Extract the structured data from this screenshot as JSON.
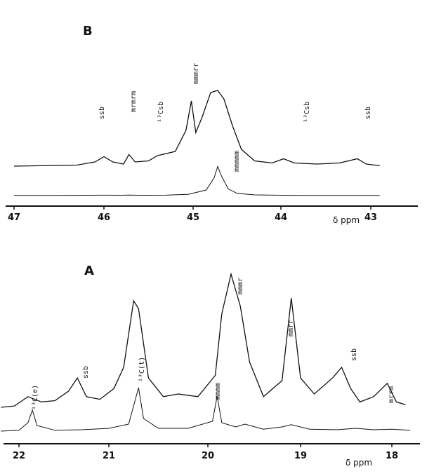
{
  "chart_data": [
    {
      "type": "line",
      "panel": "B",
      "xlabel": "δ ppm",
      "xlim": [
        47.0,
        42.8
      ],
      "xticks": [
        47,
        46,
        45,
        44,
        43
      ],
      "tick_labels": [
        "47",
        "46",
        "45",
        "44",
        "43"
      ],
      "grid": false,
      "series": [
        {
          "x": [
            47.0,
            46.6,
            46.2,
            46.0,
            45.8,
            45.72,
            45.6,
            45.5,
            45.3,
            45.05,
            44.85,
            44.76,
            44.72,
            44.68,
            44.6,
            44.5,
            44.3,
            44.0,
            43.7,
            43.4,
            43.0,
            42.9
          ],
          "values": [
            0.02,
            0.02,
            0.03,
            0.04,
            0.03,
            0.05,
            0.03,
            0.03,
            0.04,
            0.12,
            0.5,
            1.6,
            2.6,
            1.8,
            0.6,
            0.2,
            0.06,
            0.03,
            0.02,
            0.02,
            0.02,
            0.02
          ]
        },
        {
          "x": [
            47.0,
            46.7,
            46.3,
            46.1,
            46.0,
            45.9,
            45.78,
            45.72,
            45.65,
            45.5,
            45.4,
            45.2,
            45.08,
            45.02,
            44.97,
            44.9,
            44.8,
            44.72,
            44.65,
            44.55,
            44.45,
            44.3,
            44.1,
            43.97,
            43.85,
            43.6,
            43.35,
            43.15,
            43.05,
            42.9
          ],
          "values": [
            0.1,
            0.12,
            0.15,
            0.3,
            0.55,
            0.3,
            0.2,
            0.65,
            0.3,
            0.35,
            0.6,
            0.8,
            1.8,
            3.2,
            1.7,
            2.4,
            3.6,
            3.7,
            3.3,
            2.0,
            0.9,
            0.35,
            0.25,
            0.45,
            0.25,
            0.2,
            0.25,
            0.45,
            0.2,
            0.12
          ]
        }
      ],
      "annotations": [
        "ssb",
        "mrmrm",
        "¹³Csb",
        "mmmrr",
        "mmmmm",
        "¹³Csb",
        "ssb"
      ],
      "panel_label": "B"
    },
    {
      "type": "line",
      "panel": "A",
      "xlabel": "δ ppm",
      "xlim": [
        22.2,
        17.8
      ],
      "xticks": [
        22,
        21,
        20,
        19,
        18
      ],
      "tick_labels": [
        "22",
        "21",
        "20",
        "19",
        "18"
      ],
      "grid": false,
      "series": [
        {
          "x": [
            22.2,
            22.0,
            21.9,
            21.85,
            21.8,
            21.6,
            21.3,
            21.0,
            20.8,
            20.7,
            20.65,
            20.5,
            20.2,
            19.95,
            19.9,
            19.85,
            19.7,
            19.6,
            19.4,
            19.2,
            19.1,
            18.9,
            18.6,
            18.4,
            18.2,
            18.0,
            17.8
          ],
          "values": [
            0.05,
            0.08,
            0.35,
            0.8,
            0.25,
            0.08,
            0.1,
            0.15,
            0.3,
            1.6,
            0.5,
            0.15,
            0.15,
            0.4,
            1.3,
            0.35,
            0.2,
            0.3,
            0.12,
            0.2,
            0.28,
            0.12,
            0.1,
            0.15,
            0.1,
            0.12,
            0.08
          ]
        },
        {
          "x": [
            22.2,
            22.05,
            21.9,
            21.75,
            21.6,
            21.45,
            21.35,
            21.25,
            21.1,
            20.95,
            20.85,
            20.75,
            20.7,
            20.6,
            20.45,
            20.3,
            20.1,
            19.92,
            19.85,
            19.75,
            19.65,
            19.55,
            19.4,
            19.2,
            19.1,
            19.0,
            18.85,
            18.65,
            18.55,
            18.45,
            18.35,
            18.2,
            18.05,
            17.95,
            17.85
          ],
          "values": [
            0.5,
            0.55,
            0.9,
            0.7,
            0.75,
            1.1,
            1.6,
            0.9,
            0.8,
            1.2,
            2.0,
            4.5,
            4.2,
            1.6,
            0.9,
            1.0,
            0.9,
            1.7,
            4.0,
            5.5,
            4.3,
            2.2,
            0.9,
            1.5,
            4.6,
            1.6,
            1.0,
            1.6,
            2.0,
            1.2,
            0.7,
            0.9,
            1.4,
            0.7,
            0.6
          ]
        }
      ],
      "annotations": [
        "¹³C(e)",
        "ssb",
        "¹³C(t)",
        "mmmm",
        "mmmr",
        "mmrr",
        "ssb",
        "mrrm"
      ],
      "panel_label": "A"
    }
  ]
}
